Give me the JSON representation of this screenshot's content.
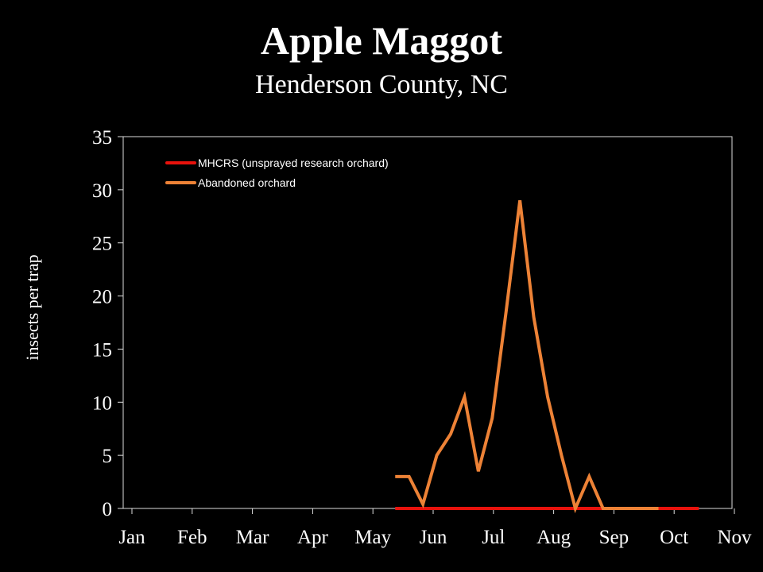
{
  "chart_data": {
    "type": "line",
    "title": "Apple Maggot",
    "subtitle": "Henderson County, NC",
    "xlabel": "",
    "ylabel": "insects per trap",
    "ylim": [
      0,
      35
    ],
    "yticks": [
      "0",
      "5",
      "10",
      "15",
      "20",
      "25",
      "30",
      "35"
    ],
    "xticks": [
      "Jan",
      "Feb",
      "Mar",
      "Apr",
      "May",
      "Jun",
      "Jul",
      "Aug",
      "Sep",
      "Oct",
      "Nov"
    ],
    "xlim_months": [
      0,
      10
    ],
    "grid": false,
    "legend_placement": "top-left",
    "series": [
      {
        "name": "MHCRS (unsprayed research orchard)",
        "color": "#e8120c",
        "x": [
          4.37,
          4.6,
          4.83,
          5.06,
          5.29,
          5.52,
          5.75,
          5.98,
          6.21,
          6.44,
          6.67,
          6.9,
          7.13,
          7.36,
          7.59,
          7.82,
          8.05,
          8.28,
          8.51,
          8.74,
          8.97,
          9.2,
          9.41
        ],
        "values": [
          0,
          0,
          0,
          0,
          0,
          0,
          0,
          0,
          0,
          0,
          0,
          0,
          0,
          0,
          0,
          0,
          0,
          0,
          0,
          0,
          0,
          0,
          0
        ]
      },
      {
        "name": "Abandoned orchard",
        "color": "#ed8236",
        "x": [
          4.37,
          4.6,
          4.83,
          5.06,
          5.29,
          5.52,
          5.75,
          5.98,
          6.21,
          6.44,
          6.67,
          6.9,
          7.13,
          7.36,
          7.59,
          7.82,
          8.05,
          8.28,
          8.51,
          8.74
        ],
        "values": [
          3,
          3,
          0.4,
          5,
          7,
          10.5,
          3.5,
          8.5,
          18.5,
          29,
          18,
          10.5,
          5,
          0,
          3,
          0,
          0,
          0,
          0,
          0
        ]
      }
    ]
  }
}
